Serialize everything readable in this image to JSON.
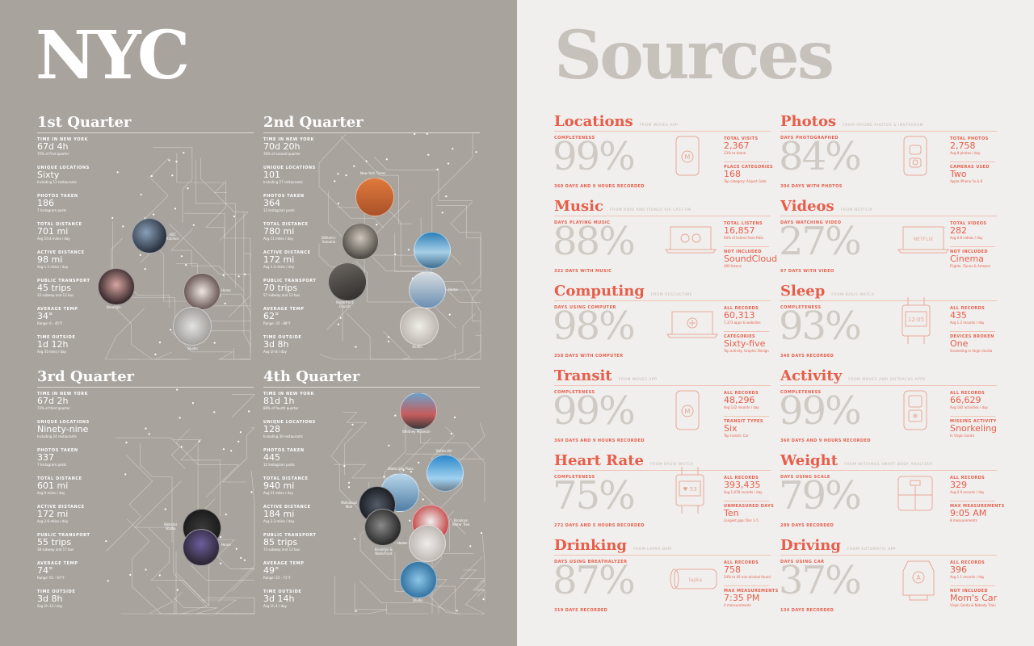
{
  "nyc_title": "NYC",
  "sources_title": "Sources",
  "quarters": [
    {
      "title": "1st Quarter",
      "stats": [
        {
          "label": "TIME IN NEW YORK",
          "value": "67d 4h",
          "sub": "75% of first quarter"
        },
        {
          "label": "UNIQUE LOCATIONS",
          "value": "Sixty",
          "sub": "Including 12 restaurants"
        },
        {
          "label": "PHOTOS TAKEN",
          "value": "186",
          "sub": "7 Instagram posts"
        },
        {
          "label": "TOTAL DISTANCE",
          "value": "701 mi",
          "sub": "Avg 10.4 miles / day"
        },
        {
          "label": "ACTIVE DISTANCE",
          "value": "98 mi",
          "sub": "Avg 1.5 miles / day"
        },
        {
          "label": "PUBLIC TRANSPORT",
          "value": "45 trips",
          "sub": "33 subway and 12 bus"
        },
        {
          "label": "AVERAGE TEMP",
          "value": "34°",
          "sub": "Range: 6 - 45°F"
        },
        {
          "label": "TIME OUTSIDE",
          "value": "1d 12h",
          "sub": "Avg 35 mins / day"
        }
      ],
      "places": [
        "ABC\nKitchen",
        "Brooklyn",
        "Home",
        "Studio"
      ]
    },
    {
      "title": "2nd Quarter",
      "stats": [
        {
          "label": "TIME IN NEW YORK",
          "value": "70d 20h",
          "sub": "78% of second quarter"
        },
        {
          "label": "UNIQUE LOCATIONS",
          "value": "101",
          "sub": "Including 27 restaurants"
        },
        {
          "label": "PHOTOS TAKEN",
          "value": "364",
          "sub": "13 Instagram posts"
        },
        {
          "label": "TOTAL DISTANCE",
          "value": "780 mi",
          "sub": "Avg 11 miles / day"
        },
        {
          "label": "ACTIVE DISTANCE",
          "value": "172 mi",
          "sub": "Avg 2.4 miles / day"
        },
        {
          "label": "PUBLIC TRANSPORT",
          "value": "70 trips",
          "sub": "57 subway and 13 bus"
        },
        {
          "label": "AVERAGE TEMP",
          "value": "62°",
          "sub": "Range: 35 - 88°F"
        },
        {
          "label": "TIME OUTSIDE",
          "value": "3d 8h",
          "sub": "Avg 1h 8 / day"
        }
      ],
      "places": [
        "New York Times",
        "Williams-\nSonoma",
        "Waterfront\nChurch",
        "Home",
        "Studio"
      ]
    },
    {
      "title": "3rd Quarter",
      "stats": [
        {
          "label": "TIME IN NEW YORK",
          "value": "67d 2h",
          "sub": "73% of third quarter"
        },
        {
          "label": "UNIQUE LOCATIONS",
          "value": "Ninety-nine",
          "sub": "Including 24 restaurants"
        },
        {
          "label": "PHOTOS TAKEN",
          "value": "337",
          "sub": "7 Instagram posts"
        },
        {
          "label": "TOTAL DISTANCE",
          "value": "601 mi",
          "sub": "Avg 9 miles / day"
        },
        {
          "label": "ACTIVE DISTANCE",
          "value": "172 mi",
          "sub": "Avg 2.6 miles / day"
        },
        {
          "label": "PUBLIC TRANSPORT",
          "value": "55 trips",
          "sub": "38 subway and 17 bus"
        },
        {
          "label": "AVERAGE TEMP",
          "value": "74°",
          "sub": "Range: 61 - 97°F"
        },
        {
          "label": "TIME OUTSIDE",
          "value": "3d 8h",
          "sub": "Avg 1h 12 / day"
        }
      ],
      "places": [
        "Webster\nStudio",
        "Home"
      ]
    },
    {
      "title": "4th Quarter",
      "stats": [
        {
          "label": "TIME IN NEW YORK",
          "value": "81d 1h",
          "sub": "88% of fourth quarter"
        },
        {
          "label": "UNIQUE LOCATIONS",
          "value": "128",
          "sub": "Including 30 restaurants"
        },
        {
          "label": "PHOTOS TAKEN",
          "value": "445",
          "sub": "12 Instagram posts"
        },
        {
          "label": "TOTAL DISTANCE",
          "value": "940 mi",
          "sub": "Avg 11 miles / day"
        },
        {
          "label": "ACTIVE DISTANCE",
          "value": "184 mi",
          "sub": "Avg 2.3 miles / day"
        },
        {
          "label": "PUBLIC TRANSPORT",
          "value": "85 trips",
          "sub": "73 subway and 12 bus"
        },
        {
          "label": "AVERAGE TEMP",
          "value": "49°",
          "sub": "Range: 22 - 71°F"
        },
        {
          "label": "TIME OUTSIDE",
          "value": "3d 14h",
          "sub": "Avg 1h 4 / day"
        }
      ],
      "places": [
        "Whitney Museum",
        "Battle Hill",
        "Waterside Plaza",
        "Wallabout\nMall",
        "Brooklyn\nWater Tree",
        "Home",
        "Brooklyn &\nWaterfront",
        "Studio"
      ]
    }
  ],
  "sources": [
    {
      "title": "Locations",
      "subtitle": "FROM MOVES APP",
      "metric_label": "COMPLETENESS",
      "percent": "99%",
      "days": "360 DAYS AND 9 HOURS RECORDED",
      "icon": "phone-icon",
      "s1": {
        "k": "TOTAL VISITS",
        "v": "2,367",
        "d": "23% to Home"
      },
      "s2": {
        "k": "PLACE CATEGORIES",
        "v": "168",
        "d": "Top category: Airport Gate"
      }
    },
    {
      "title": "Photos",
      "subtitle": "FROM IPHONE PHOTOS & INSTAGRAM",
      "metric_label": "DAYS PHOTOGRAPHED",
      "percent": "84%",
      "days": "304 DAYS WITH PHOTOS",
      "icon": "phone-camera-icon",
      "s1": {
        "k": "TOTAL PHOTOS",
        "v": "2,758",
        "d": "Avg 8 photos / day"
      },
      "s2": {
        "k": "CAMERAS USED",
        "v": "Two",
        "d": "Apple iPhone 5s & 6"
      }
    },
    {
      "title": "Music",
      "subtitle": "FROM RDIO AND ITUNES VIA LAST.FM",
      "metric_label": "DAYS PLAYING MUSIC",
      "percent": "88%",
      "days": "322 DAYS WITH MUSIC",
      "icon": "laptop-music-icon",
      "s1": {
        "k": "TOTAL LISTENS",
        "v": "16,857",
        "d": "94% of listens from Rdio"
      },
      "s2": {
        "k": "NOT INCLUDED",
        "v": "SoundCloud",
        "d": "490 listens"
      }
    },
    {
      "title": "Videos",
      "subtitle": "FROM NETFLIX",
      "metric_label": "DAYS WATCHING VIDEO",
      "percent": "27%",
      "days": "97 DAYS WITH VIDEO",
      "icon": "laptop-netflix-icon",
      "s1": {
        "k": "TOTAL VIDEOS",
        "v": "282",
        "d": "Avg 0.8 videos / day"
      },
      "s2": {
        "k": "NOT INCLUDED",
        "v": "Cinema",
        "d": "Flights, iTunes & Amazon"
      }
    },
    {
      "title": "Computing",
      "subtitle": "FROM RESCUETIME",
      "metric_label": "DAYS USING COMPUTER",
      "percent": "98%",
      "days": "358 DAYS WITH COMPUTER",
      "icon": "laptop-computing-icon",
      "s1": {
        "k": "ALL RECORDS",
        "v": "60,313",
        "d": "7,373 apps & websites"
      },
      "s2": {
        "k": "CATEGORIES",
        "v": "Sixty-five",
        "d": "Top activity: Graphic Design"
      }
    },
    {
      "title": "Sleep",
      "subtitle": "FROM BASIS WATCH",
      "metric_label": "COMPLETENESS",
      "percent": "93%",
      "days": "340 DAYS RECORDED",
      "icon": "watch-icon",
      "s1": {
        "k": "ALL RECORDS",
        "v": "435",
        "d": "Avg 1.2 records / day"
      },
      "s2": {
        "k": "DEVICES BROKEN",
        "v": "One",
        "d": "Snorkeling in Virgin Gorda"
      }
    },
    {
      "title": "Transit",
      "subtitle": "FROM MOVES APP",
      "metric_label": "COMPLETENESS",
      "percent": "99%",
      "days": "360 DAYS AND 9 HOURS RECORDED",
      "icon": "phone-icon",
      "s1": {
        "k": "ALL RECORDS",
        "v": "48,296",
        "d": "Avg 132 records / day"
      },
      "s2": {
        "k": "TRANSIT TYPES",
        "v": "Six",
        "d": "Top transit: Car"
      }
    },
    {
      "title": "Activity",
      "subtitle": "FROM MOVES AND SKITRACKS APPS",
      "metric_label": "COMPLETENESS",
      "percent": "99%",
      "days": "360 DAYS AND 9 HOURS RECORDED",
      "icon": "phone-snow-icon",
      "s1": {
        "k": "ALL RECORDS",
        "v": "66,629",
        "d": "Avg 182 activities / day"
      },
      "s2": {
        "k": "MISSING ACTIVITY",
        "v": "Snorkeling",
        "d": "In Virgin Gorda"
      }
    },
    {
      "title": "Heart Rate",
      "subtitle": "FROM BASIS WATCH",
      "metric_label": "COMPLETENESS",
      "percent": "75%",
      "days": "272 DAYS AND 5 HOURS RECORDED",
      "icon": "heart-watch-icon",
      "s1": {
        "k": "ALL RECORDS",
        "v": "393,435",
        "d": "Avg 1,078 records / day"
      },
      "s2": {
        "k": "UNMEASURED DAYS",
        "v": "Ten",
        "d": "Longest gap: Dec 1-5"
      }
    },
    {
      "title": "Weight",
      "subtitle": "FROM WITHINGS SMART BODY ANALYZER",
      "metric_label": "DAYS USING SCALE",
      "percent": "79%",
      "days": "289 DAYS RECORDED",
      "icon": "scale-icon",
      "s1": {
        "k": "ALL RECORDS",
        "v": "329",
        "d": "Avg 0.9 records / day"
      },
      "s2": {
        "k": "MAX MEASUREMENTS",
        "v": "9:05 AM",
        "d": "8 measurements"
      }
    },
    {
      "title": "Drinking",
      "subtitle": "FROM LAPKA BAM",
      "metric_label": "DAYS USING BREATHALYZER",
      "percent": "87%",
      "days": "319 DAYS RECORDED",
      "icon": "breathalyzer-icon",
      "s1": {
        "k": "ALL RECORDS",
        "v": "758",
        "d": "24% to 45 non-alcohol found"
      },
      "s2": {
        "k": "MAX MEASUREMENTS",
        "v": "7:35 PM",
        "d": "4 measurements"
      }
    },
    {
      "title": "Driving",
      "subtitle": "FROM AUTOMATIC APP",
      "metric_label": "DAYS USING CAR",
      "percent": "37%",
      "days": "134 DAYS RECORDED",
      "icon": "car-adapter-icon",
      "s1": {
        "k": "ALL RECORDS",
        "v": "396",
        "d": "Avg 1.1 records / day"
      },
      "s2": {
        "k": "NOT INCLUDED",
        "v": "Mom's Car",
        "d": "Virgin Gorda & Nobody Train"
      }
    }
  ],
  "icon_texts": {
    "clock": "12:05",
    "heart": "♥ 53",
    "netflix": "NETFLIX",
    "lapka": "lapka"
  },
  "colors": {
    "left_bg": "#a8a39d",
    "right_bg": "#f0efed",
    "accent": "#e85d4a",
    "muted": "#d0cac4"
  }
}
